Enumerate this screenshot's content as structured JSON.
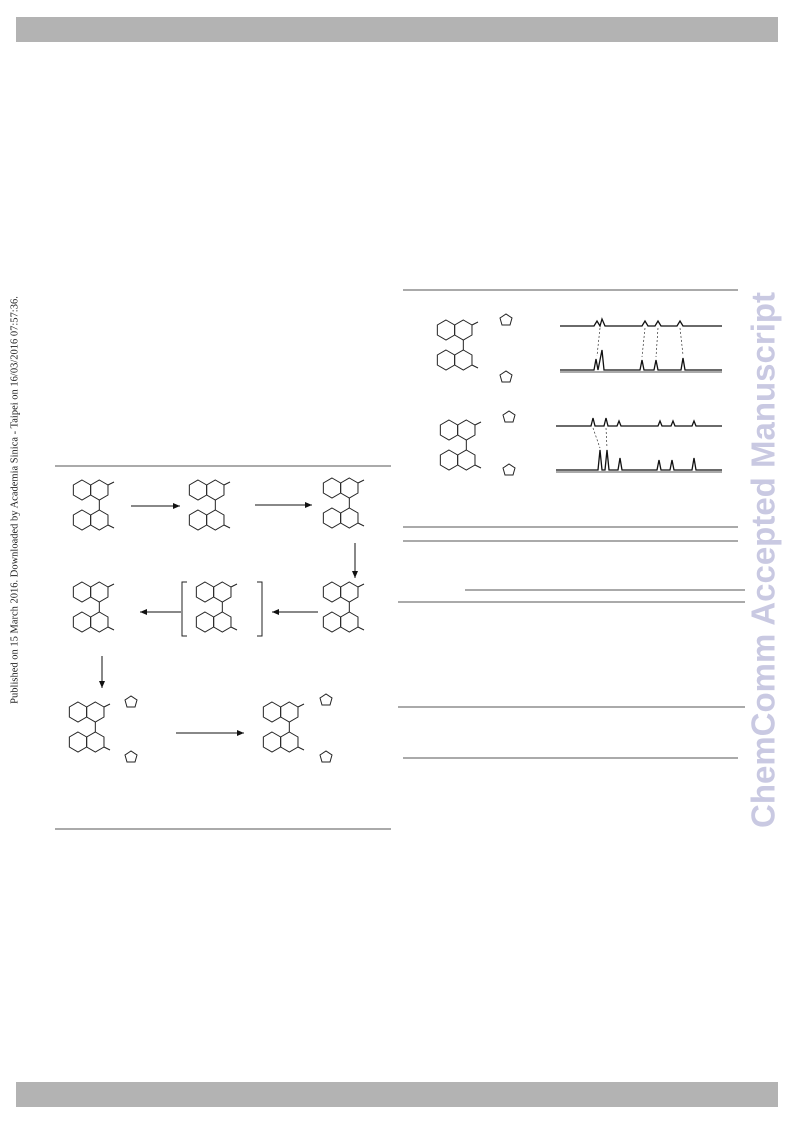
{
  "side_note": "Published on 15 March 2016. Downloaded by Academia Sinica - Taipei on 16/03/2016 07:57:36.",
  "watermark": "ChemComm Accepted Manuscript"
}
